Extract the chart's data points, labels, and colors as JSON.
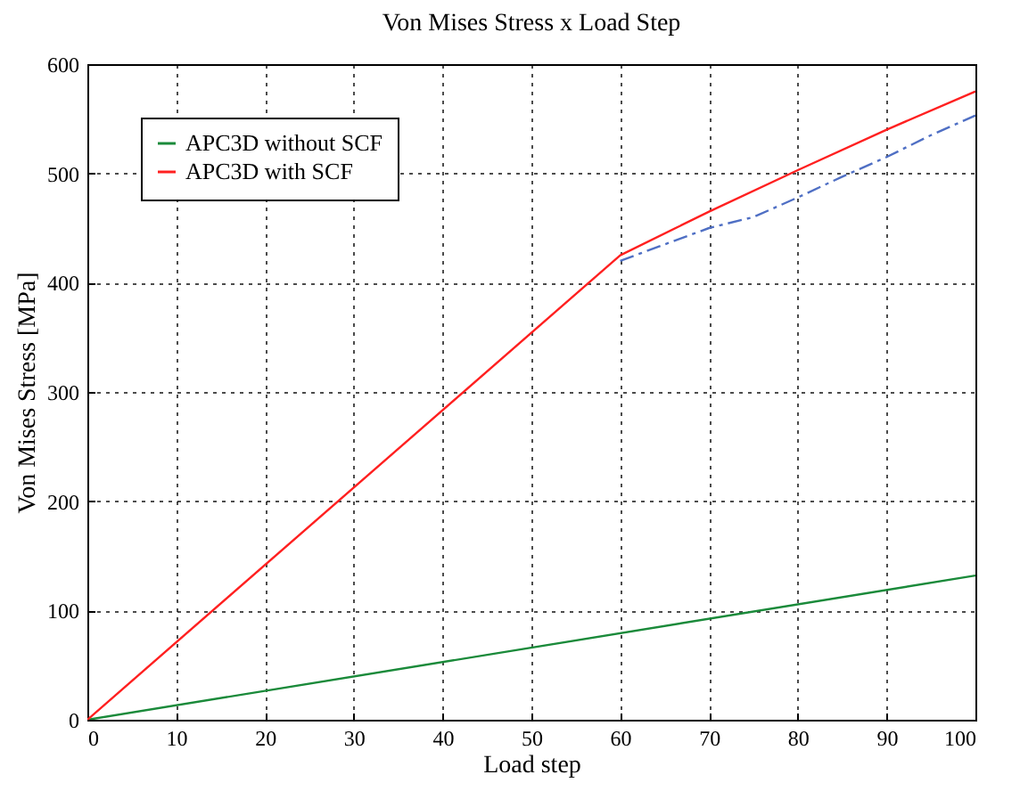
{
  "chart_data": {
    "type": "line",
    "title": "Von Mises Stress x Load Step",
    "xlabel": "Load step",
    "ylabel": "Von Mises Stress [MPa]",
    "series": [
      {
        "color": "#4f6fc4",
        "line_style": "dashed",
        "x": [
          60,
          65,
          70,
          75,
          80,
          85,
          90,
          95,
          100
        ],
        "values": [
          420,
          435,
          450,
          460,
          478,
          497,
          515,
          535,
          553
        ]
      },
      {
        "name": "APC3D without SCF",
        "color": "#1a8a3a",
        "x": [
          0,
          100
        ],
        "values": [
          0,
          132
        ]
      },
      {
        "name": "APC3D with SCF",
        "color": "#ff2020",
        "x": [
          0,
          60,
          70,
          80,
          90,
          100
        ],
        "values": [
          0,
          425,
          465,
          503,
          540,
          575
        ]
      }
    ],
    "xlim": [
      0,
      100
    ],
    "xticks": [
      0,
      10,
      20,
      30,
      40,
      50,
      60,
      70,
      80,
      90,
      100
    ],
    "ylim": [
      0,
      600
    ],
    "yticks": [
      0,
      100,
      200,
      300,
      400,
      500,
      600
    ],
    "grid": true,
    "legend": "top left",
    "marker": "none"
  }
}
